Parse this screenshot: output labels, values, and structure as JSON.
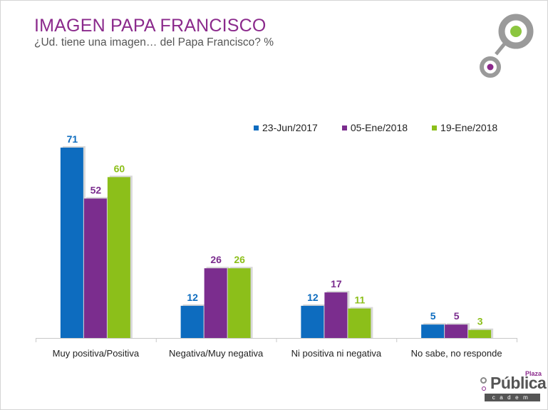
{
  "header": {
    "title": "IMAGEN PAPA FRANCISCO",
    "subtitle": "¿Ud. tiene una imagen… del Papa Francisco? %"
  },
  "logo": {
    "plaza": "Plaza",
    "publica": "Pública",
    "cadem": "cadem"
  },
  "colors": {
    "title": "#8b2a8c",
    "series1": "#0d6cbf",
    "series2": "#7b2d8e",
    "series3": "#8cbf1a",
    "logo_gray": "#9a9a9a",
    "logo_green": "#8cc63f",
    "logo_purple": "#8b2a8c"
  },
  "chart_data": {
    "type": "bar",
    "categories": [
      "Muy positiva/Positiva",
      "Negativa/Muy negativa",
      "Ni positiva ni negativa",
      "No sabe, no responde"
    ],
    "series": [
      {
        "name": "23-Jun/2017",
        "values": [
          71,
          12,
          12,
          5
        ],
        "color": "#0d6cbf"
      },
      {
        "name": "05-Ene/2018",
        "values": [
          52,
          26,
          17,
          5
        ],
        "color": "#7b2d8e"
      },
      {
        "name": "19-Ene/2018",
        "values": [
          60,
          26,
          11,
          3
        ],
        "color": "#8cbf1a"
      }
    ],
    "title": "",
    "xlabel": "",
    "ylabel": "",
    "ylim": [
      0,
      75
    ],
    "grid": false,
    "legend": "top-right",
    "data_labels": true
  }
}
